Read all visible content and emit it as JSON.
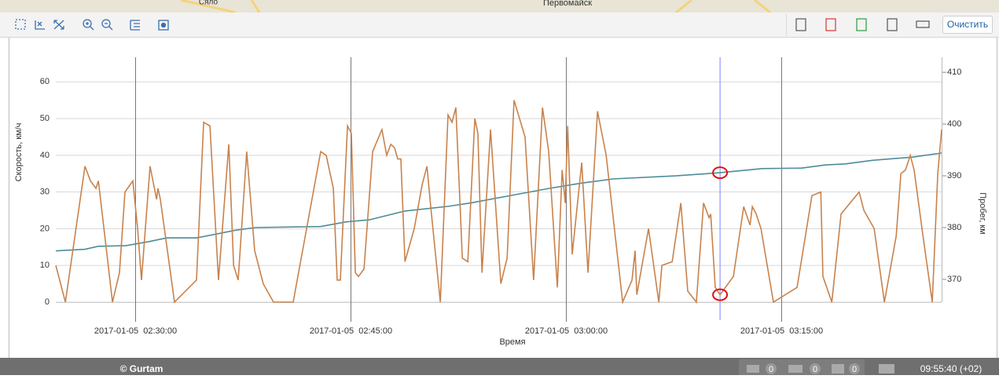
{
  "ui": {
    "map_labels": [
      "Сяло",
      "Первомайск"
    ],
    "clear_button": "Очистить",
    "footer": {
      "copyright": "© Gurtam",
      "counters": [
        0,
        0,
        0
      ],
      "clock": "09:55:40 (+02)"
    }
  },
  "chart_data": {
    "type": "line",
    "y_label": "Скорость, км/ч",
    "y2_label": "Пробег, км",
    "x_label": "Время",
    "xlim": [
      "2017-01-05 02:24:28",
      "2017-01-05 03:26:10"
    ],
    "xticks": [
      {
        "value": "2017-01-05 02:30:00",
        "label": "2017-01-05  02:30:00"
      },
      {
        "value": "2017-01-05 02:45:00",
        "label": "2017-01-05  02:45:00"
      },
      {
        "value": "2017-01-05 03:00:00",
        "label": "2017-01-05  03:00:00"
      },
      {
        "value": "2017-01-05 03:15:00",
        "label": "2017-01-05  03:15:00"
      }
    ],
    "ylim": [
      0,
      66.7
    ],
    "yticks": [
      0,
      10,
      20,
      30,
      40,
      50,
      60
    ],
    "y2lim": [
      365.6,
      412.9
    ],
    "y2ticks": [
      370,
      380,
      390,
      400,
      410
    ],
    "grid": true,
    "highlight": "2017-01-05 03:10:44",
    "series": [
      {
        "color": "#c8824c",
        "axis": "y",
        "x": [
          "2017-01-05 02:24:28",
          "2017-01-05 02:25:08",
          "2017-01-05 02:26:30",
          "2017-01-05 02:26:53",
          "2017-01-05 02:27:16",
          "2017-01-05 02:27:26",
          "2017-01-05 02:28:25",
          "2017-01-05 02:28:54",
          "2017-01-05 02:29:17",
          "2017-01-05 02:29:50",
          "2017-01-05 02:30:10",
          "2017-01-05 02:30:26",
          "2017-01-05 02:31:02",
          "2017-01-05 02:31:29",
          "2017-01-05 02:31:35",
          "2017-01-05 02:31:45",
          "2017-01-05 02:32:44",
          "2017-01-05 02:34:16",
          "2017-01-05 02:34:46",
          "2017-01-05 02:35:12",
          "2017-01-05 02:35:48",
          "2017-01-05 02:36:31",
          "2017-01-05 02:36:51",
          "2017-01-05 02:37:10",
          "2017-01-05 02:37:46",
          "2017-01-05 02:38:19",
          "2017-01-05 02:38:55",
          "2017-01-05 02:39:38",
          "2017-01-05 02:41:00",
          "2017-01-05 02:42:55",
          "2017-01-05 02:43:18",
          "2017-01-05 02:43:48",
          "2017-01-05 02:44:04",
          "2017-01-05 02:44:17",
          "2017-01-05 02:44:47",
          "2017-01-05 02:45:03",
          "2017-01-05 02:45:20",
          "2017-01-05 02:45:33",
          "2017-01-05 02:45:56",
          "2017-01-05 02:46:32",
          "2017-01-05 02:47:11",
          "2017-01-05 02:47:31",
          "2017-01-05 02:47:48",
          "2017-01-05 02:48:04",
          "2017-01-05 02:48:17",
          "2017-01-05 02:48:30",
          "2017-01-05 02:48:47",
          "2017-01-05 02:49:26",
          "2017-01-05 02:49:59",
          "2017-01-05 02:50:19",
          "2017-01-05 02:50:35",
          "2017-01-05 02:51:15",
          "2017-01-05 02:51:47",
          "2017-01-05 02:52:04",
          "2017-01-05 02:52:20",
          "2017-01-05 02:52:47",
          "2017-01-05 02:53:10",
          "2017-01-05 02:53:39",
          "2017-01-05 02:53:52",
          "2017-01-05 02:54:09",
          "2017-01-05 02:54:45",
          "2017-01-05 02:55:28",
          "2017-01-05 02:55:54",
          "2017-01-05 02:56:23",
          "2017-01-05 02:57:09",
          "2017-01-05 02:57:45",
          "2017-01-05 02:58:22",
          "2017-01-05 02:58:48",
          "2017-01-05 02:59:24",
          "2017-01-05 02:59:44",
          "2017-01-05 02:59:57",
          "2017-01-05 03:00:07",
          "2017-01-05 03:00:26",
          "2017-01-05 03:01:06",
          "2017-01-05 03:01:32",
          "2017-01-05 03:02:12",
          "2017-01-05 03:02:48",
          "2017-01-05 03:03:57",
          "2017-01-05 03:04:36",
          "2017-01-05 03:04:49",
          "2017-01-05 03:04:56",
          "2017-01-05 03:05:45",
          "2017-01-05 03:06:28",
          "2017-01-05 03:06:41",
          "2017-01-05 03:07:24",
          "2017-01-05 03:08:00",
          "2017-01-05 03:08:29",
          "2017-01-05 03:09:05",
          "2017-01-05 03:09:35",
          "2017-01-05 03:09:58",
          "2017-01-05 03:10:05",
          "2017-01-05 03:10:24",
          "2017-01-05 03:10:44",
          "2017-01-05 03:11:40",
          "2017-01-05 03:12:23",
          "2017-01-05 03:12:49",
          "2017-01-05 03:12:59",
          "2017-01-05 03:13:15",
          "2017-01-05 03:13:35",
          "2017-01-05 03:14:27",
          "2017-01-05 03:16:06",
          "2017-01-05 03:17:08",
          "2017-01-05 03:17:45",
          "2017-01-05 03:17:54",
          "2017-01-05 03:18:31",
          "2017-01-05 03:19:10",
          "2017-01-05 03:20:25",
          "2017-01-05 03:20:45",
          "2017-01-05 03:21:28",
          "2017-01-05 03:22:11",
          "2017-01-05 03:23:00",
          "2017-01-05 03:23:20",
          "2017-01-05 03:23:39",
          "2017-01-05 03:23:59",
          "2017-01-05 03:24:15",
          "2017-01-05 03:24:52",
          "2017-01-05 03:25:31",
          "2017-01-05 03:25:54",
          "2017-01-05 03:26:10"
        ],
        "values": [
          10,
          0,
          37,
          33,
          31,
          33,
          0,
          8,
          30,
          33,
          20,
          6,
          37,
          28,
          31,
          28,
          0,
          6,
          49,
          48,
          6,
          43,
          10,
          6,
          41,
          14,
          5,
          0,
          0,
          41,
          40,
          31,
          6,
          6,
          48,
          46,
          8,
          7,
          9,
          41,
          47,
          40,
          43,
          42,
          39,
          39,
          11,
          20,
          32,
          37,
          26,
          0,
          51,
          49,
          53,
          12,
          11,
          50,
          46,
          8,
          47,
          5,
          12,
          55,
          45,
          6,
          53,
          41,
          4,
          36,
          27,
          48,
          13,
          38,
          8,
          52,
          40,
          0,
          6,
          14,
          2,
          20,
          0,
          10,
          11,
          27,
          3,
          0,
          27,
          23,
          24,
          4,
          2,
          7,
          26,
          21,
          26,
          24,
          20,
          0,
          4,
          29,
          30,
          7,
          0,
          24,
          30,
          25,
          20,
          0,
          18,
          35,
          36,
          40,
          36,
          18,
          0,
          35,
          47
        ]
      },
      {
        "color": "#4d8c98",
        "axis": "y2",
        "x": [
          "2017-01-05 02:24:28",
          "2017-01-05 02:26:30",
          "2017-01-05 02:27:26",
          "2017-01-05 02:29:21",
          "2017-01-05 02:30:59",
          "2017-01-05 02:32:11",
          "2017-01-05 02:34:16",
          "2017-01-05 02:35:55",
          "2017-01-05 02:37:00",
          "2017-01-05 02:38:23",
          "2017-01-05 02:42:55",
          "2017-01-05 02:44:40",
          "2017-01-05 02:46:19",
          "2017-01-05 02:48:47",
          "2017-01-05 02:51:47",
          "2017-01-05 02:53:26",
          "2017-01-05 02:56:10",
          "2017-01-05 02:58:54",
          "2017-01-05 03:01:06",
          "2017-01-05 03:03:17",
          "2017-01-05 03:07:40",
          "2017-01-05 03:10:44",
          "2017-01-05 03:13:41",
          "2017-01-05 03:16:26",
          "2017-01-05 03:18:04",
          "2017-01-05 03:19:26",
          "2017-01-05 03:21:21",
          "2017-01-05 03:24:06",
          "2017-01-05 03:26:10"
        ],
        "values": [
          375.5,
          375.8,
          376.4,
          376.5,
          377.3,
          378.0,
          378.0,
          378.9,
          379.5,
          380.0,
          380.2,
          381.1,
          381.5,
          383.2,
          384.1,
          384.8,
          386.2,
          387.6,
          388.6,
          389.4,
          390.0,
          390.6,
          391.4,
          391.5,
          392.1,
          392.3,
          393.0,
          393.6,
          394.4
        ]
      }
    ]
  }
}
